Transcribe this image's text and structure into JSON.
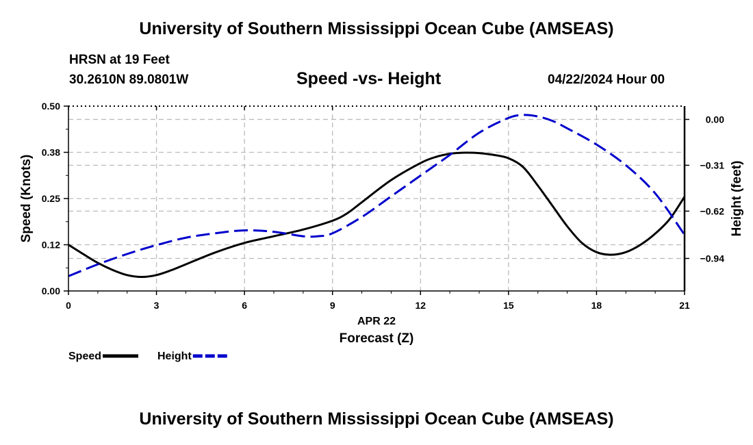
{
  "header": {
    "title": "University of Southern Mississippi Ocean Cube (AMSEAS)",
    "station": "HRSN at 19 Feet",
    "coordinates": "30.2610N  89.0801W",
    "subtitle": "Speed -vs- Height",
    "datetime": "04/22/2024 Hour 00"
  },
  "footer": {
    "title": "University of Southern Mississippi Ocean Cube (AMSEAS)"
  },
  "chart_data": {
    "type": "line",
    "xlabel": "Forecast (Z)",
    "xdate_label": "APR 22",
    "xlim": [
      0,
      21
    ],
    "xticks": [
      0,
      3,
      6,
      9,
      12,
      15,
      18,
      21
    ],
    "xtick_labels": [
      "0",
      "3",
      "6",
      "9",
      "12",
      "15",
      "18",
      "21"
    ],
    "left_axis": {
      "label": "Speed (Knots)",
      "lim": [
        0,
        0.5
      ],
      "ticks": [
        0,
        0.125,
        0.25,
        0.375,
        0.5
      ],
      "tick_labels": [
        "0.00",
        "0.12",
        "0.25",
        "0.38",
        "0.50"
      ]
    },
    "right_axis": {
      "label": "Height (feet)",
      "lim": [
        -1.16,
        0.09
      ],
      "ticks": [
        0,
        -0.31,
        -0.62,
        -0.94
      ],
      "tick_labels": [
        "0.00",
        "−0.31",
        "−0.62",
        "−0.94"
      ]
    },
    "grid": true,
    "series": [
      {
        "name": "Speed",
        "axis": "left",
        "color": "#000000",
        "style": "solid",
        "x": [
          0,
          0.5,
          1,
          1.5,
          2,
          2.5,
          3,
          3.5,
          4,
          5,
          6,
          7,
          8,
          9,
          9.5,
          10,
          11,
          12,
          12.5,
          13,
          13.5,
          14,
          14.5,
          15,
          15.5,
          16,
          16.5,
          17,
          17.5,
          18,
          18.5,
          19,
          19.5,
          20,
          20.5,
          21
        ],
        "values": [
          0.125,
          0.1,
          0.076,
          0.057,
          0.043,
          0.038,
          0.043,
          0.056,
          0.072,
          0.104,
          0.13,
          0.148,
          0.166,
          0.19,
          0.21,
          0.24,
          0.3,
          0.346,
          0.362,
          0.371,
          0.374,
          0.373,
          0.368,
          0.359,
          0.335,
          0.285,
          0.23,
          0.175,
          0.13,
          0.105,
          0.098,
          0.105,
          0.125,
          0.155,
          0.195,
          0.255
        ]
      },
      {
        "name": "Height",
        "axis": "right",
        "color": "#0000cc",
        "style": "dashed",
        "x": [
          0,
          1,
          2,
          3,
          4,
          5,
          6,
          7,
          8,
          8.5,
          9,
          10,
          11,
          12,
          13,
          14,
          15,
          15.5,
          16,
          16.5,
          17,
          18,
          19,
          20,
          21
        ],
        "values": [
          -1.06,
          -0.98,
          -0.91,
          -0.85,
          -0.8,
          -0.77,
          -0.75,
          -0.76,
          -0.79,
          -0.79,
          -0.77,
          -0.66,
          -0.52,
          -0.38,
          -0.24,
          -0.09,
          0.01,
          0.03,
          0.02,
          -0.01,
          -0.06,
          -0.17,
          -0.31,
          -0.5,
          -0.78
        ]
      }
    ],
    "legend": {
      "placement": "bottom-left",
      "items": [
        {
          "name": "Speed",
          "color": "#000000",
          "style": "solid"
        },
        {
          "name": "Height",
          "color": "#0000cc",
          "style": "dashed"
        }
      ]
    }
  }
}
